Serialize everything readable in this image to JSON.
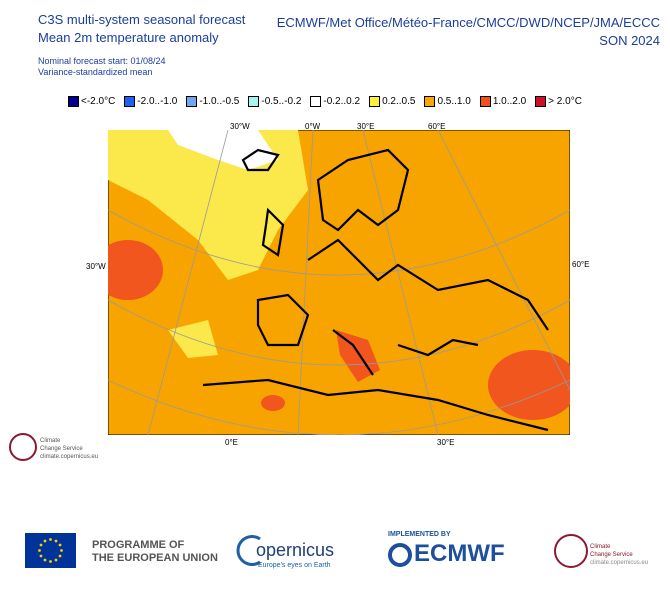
{
  "header": {
    "title": [
      "C3S multi-system seasonal forecast",
      "Mean 2m temperature anomaly"
    ],
    "subtitle": [
      "Nominal forecast start: 01/08/24",
      "Variance-standardized mean"
    ],
    "right": [
      "ECMWF/Met Office/Météo-France/CMCC/DWD/NCEP/JMA/ECCC",
      "SON 2024"
    ]
  },
  "legend": {
    "items": [
      {
        "label": "<-2.0°C",
        "color": "#00008b"
      },
      {
        "label": "-2.0..-1.0",
        "color": "#2060f0"
      },
      {
        "label": "-1.0..-0.5",
        "color": "#70a8f0"
      },
      {
        "label": "-0.5..-0.2",
        "color": "#a8f4f0"
      },
      {
        "label": "-0.2..0.2",
        "color": "#ffffff"
      },
      {
        "label": "0.2..0.5",
        "color": "#fff040"
      },
      {
        "label": "0.5..1.0",
        "color": "#ffa500"
      },
      {
        "label": "1.0..2.0",
        "color": "#f05020"
      },
      {
        "label": "> 2.0°C",
        "color": "#d0102a"
      }
    ]
  },
  "map": {
    "top_labels": [
      "30°W",
      "0°W",
      "30°E",
      "60°E"
    ],
    "side_labels": [
      "30°W",
      "60°E"
    ],
    "bottom_labels": [
      "0°E",
      "30°E"
    ]
  },
  "logos": {
    "c3s_small": [
      "Climate",
      "Change Service",
      "climate.copernicus.eu"
    ],
    "eu": [
      "PROGRAMME OF",
      "THE EUROPEAN UNION"
    ],
    "copernicus": [
      "opernicus",
      "Europe's eyes on Earth"
    ],
    "ecmwf": [
      "IMPLEMENTED BY",
      "ECMWF"
    ],
    "c3s": [
      "Climate",
      "Change Service",
      "climate.copernicus.eu"
    ]
  }
}
